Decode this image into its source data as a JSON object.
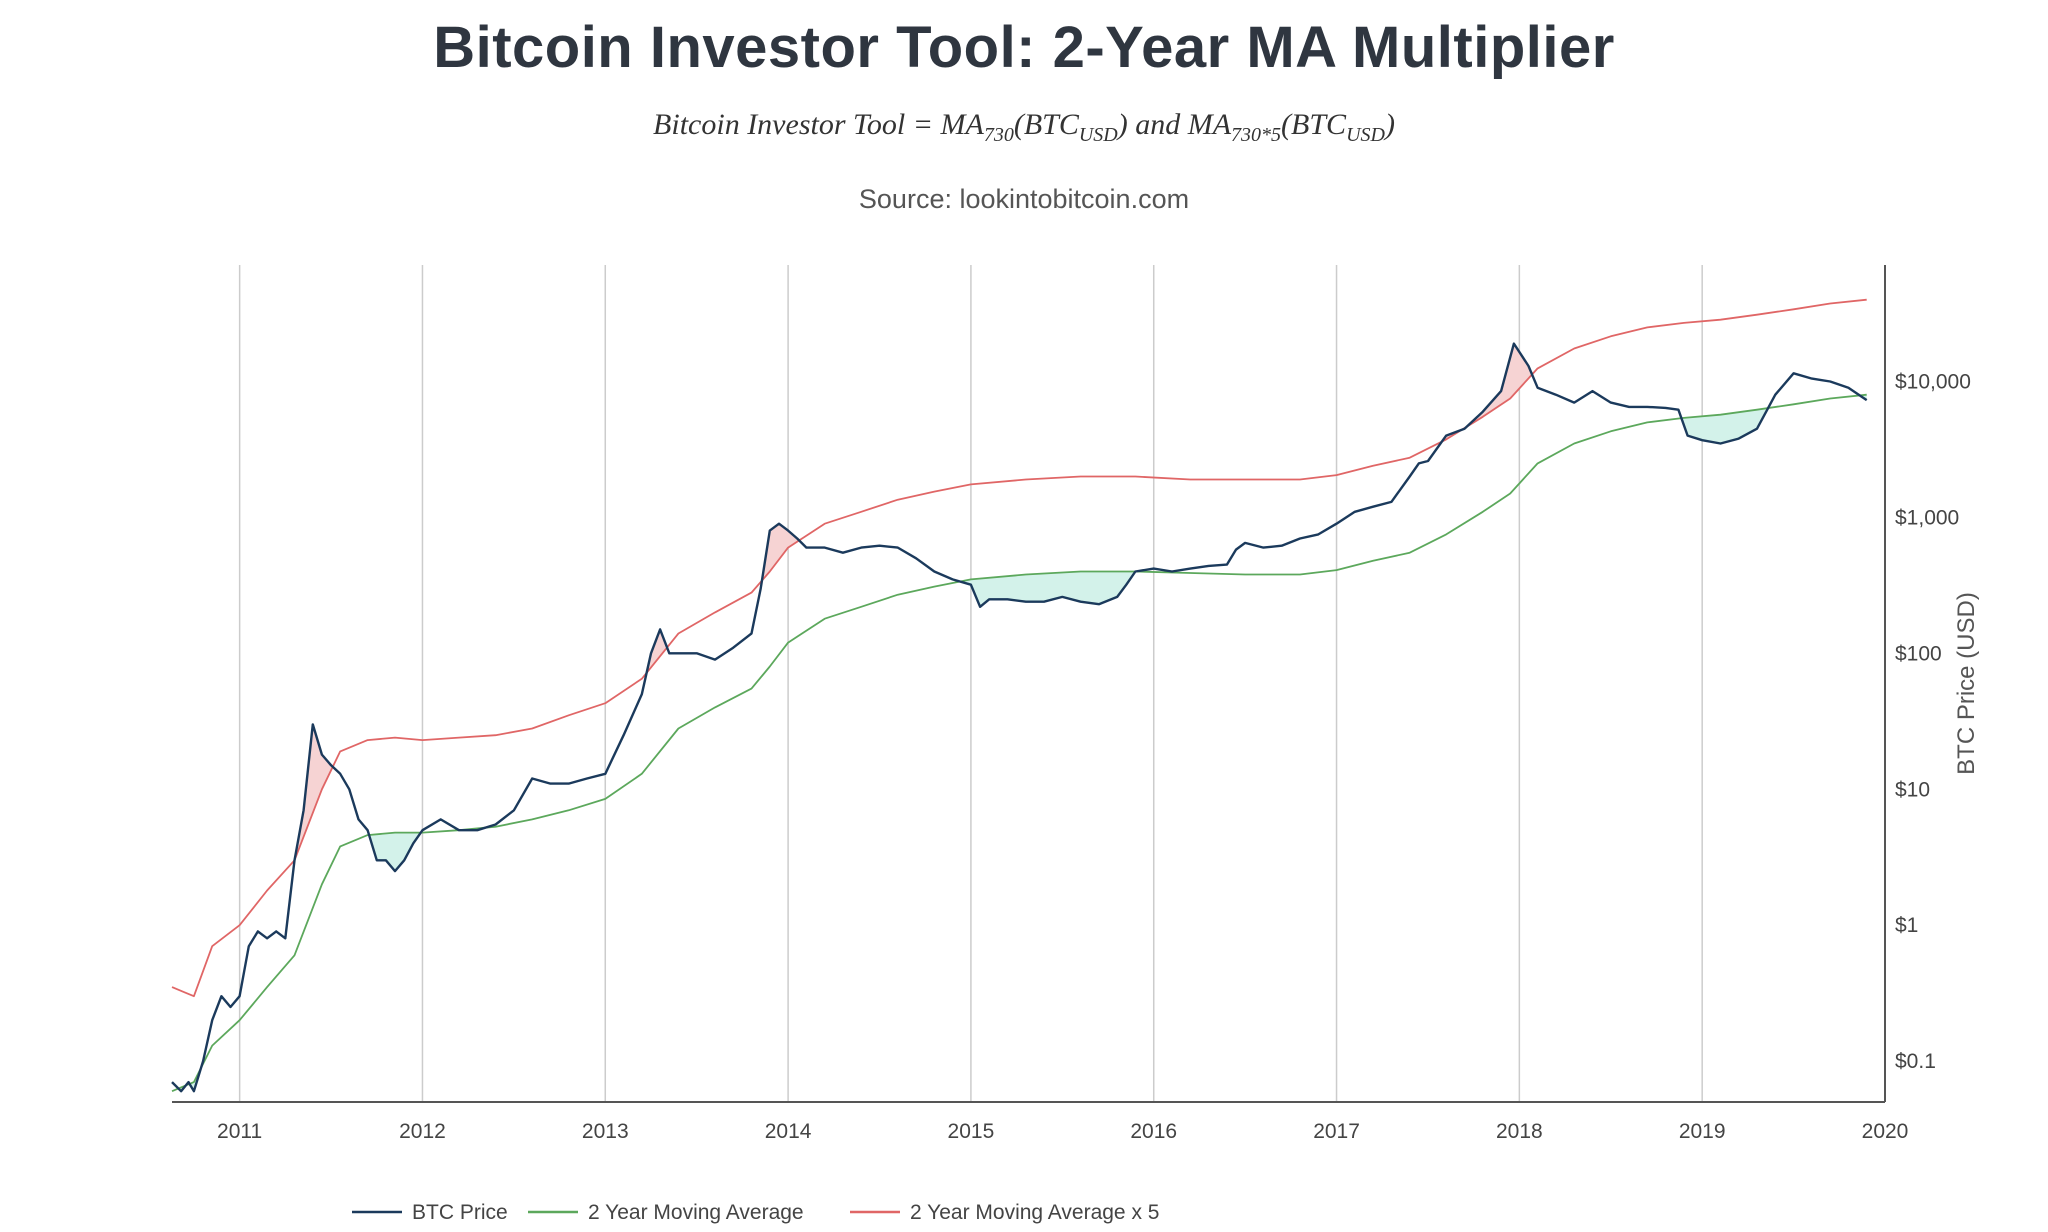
{
  "header": {
    "title": "Bitcoin Investor Tool: 2-Year MA Multiplier",
    "formula": {
      "lhs": "Bitcoin Investor Tool = MA",
      "sub1": "730",
      "mid1": "(BTC",
      "sub2": "USD",
      "mid2": ") and MA",
      "sub3": "730*5",
      "mid3": "(BTC",
      "sub4": "USD",
      "end": ")"
    },
    "source": "Source: lookintobitcoin.com"
  },
  "colors": {
    "btc": "#1b3a5c",
    "ma": "#5ca85c",
    "ma5": "#e06666",
    "fill_green": "#d3f2ea",
    "fill_red": "#f6d3d3",
    "grid": "#cccccc",
    "axis": "#555555"
  },
  "chart_data": {
    "type": "line",
    "title": "Bitcoin Investor Tool: 2-Year MA Multiplier",
    "subtitle": "Source: lookintobitcoin.com",
    "xlabel": "",
    "ylabel": "BTC Price (USD)",
    "y_scale": "log",
    "xlim": [
      2010.63,
      2020.0
    ],
    "ylim": [
      0.05,
      72000
    ],
    "x_ticks": [
      2011,
      2012,
      2013,
      2014,
      2015,
      2016,
      2017,
      2018,
      2019,
      2020
    ],
    "x_tick_labels": [
      "2011",
      "2012",
      "2013",
      "2014",
      "2015",
      "2016",
      "2017",
      "2018",
      "2019",
      "2020"
    ],
    "y_ticks": [
      0.1,
      1,
      10,
      100,
      1000,
      10000
    ],
    "y_tick_labels": [
      "$0.1",
      "$1",
      "$10",
      "$100",
      "$1,000",
      "$10,000"
    ],
    "grid": "vertical",
    "legend_position": "bottom",
    "series": [
      {
        "name": "BTC Price",
        "x": [
          2010.63,
          2010.68,
          2010.72,
          2010.75,
          2010.8,
          2010.85,
          2010.9,
          2010.95,
          2011.0,
          2011.05,
          2011.1,
          2011.15,
          2011.2,
          2011.25,
          2011.3,
          2011.35,
          2011.4,
          2011.45,
          2011.5,
          2011.55,
          2011.6,
          2011.65,
          2011.7,
          2011.75,
          2011.8,
          2011.85,
          2011.9,
          2011.95,
          2012.0,
          2012.1,
          2012.2,
          2012.3,
          2012.4,
          2012.5,
          2012.6,
          2012.7,
          2012.8,
          2012.9,
          2013.0,
          2013.1,
          2013.2,
          2013.25,
          2013.3,
          2013.35,
          2013.4,
          2013.5,
          2013.6,
          2013.7,
          2013.8,
          2013.85,
          2013.9,
          2013.95,
          2014.0,
          2014.05,
          2014.1,
          2014.2,
          2014.3,
          2014.4,
          2014.5,
          2014.6,
          2014.7,
          2014.8,
          2014.9,
          2015.0,
          2015.05,
          2015.1,
          2015.2,
          2015.3,
          2015.4,
          2015.5,
          2015.6,
          2015.7,
          2015.8,
          2015.85,
          2015.9,
          2016.0,
          2016.1,
          2016.2,
          2016.3,
          2016.4,
          2016.45,
          2016.5,
          2016.6,
          2016.7,
          2016.8,
          2016.9,
          2017.0,
          2017.1,
          2017.2,
          2017.3,
          2017.4,
          2017.45,
          2017.5,
          2017.6,
          2017.7,
          2017.8,
          2017.9,
          2017.97,
          2018.05,
          2018.1,
          2018.2,
          2018.3,
          2018.4,
          2018.5,
          2018.6,
          2018.7,
          2018.8,
          2018.87,
          2018.92,
          2019.0,
          2019.1,
          2019.2,
          2019.3,
          2019.4,
          2019.5,
          2019.6,
          2019.7,
          2019.8,
          2019.9
        ],
        "y": [
          0.07,
          0.06,
          0.07,
          0.06,
          0.1,
          0.2,
          0.3,
          0.25,
          0.3,
          0.7,
          0.9,
          0.8,
          0.9,
          0.8,
          3,
          7,
          30,
          18,
          15,
          13,
          10,
          6,
          5,
          3,
          3,
          2.5,
          3,
          4,
          5,
          6,
          5,
          5,
          5.5,
          7,
          12,
          11,
          11,
          12,
          13,
          25,
          50,
          100,
          150,
          100,
          100,
          100,
          90,
          110,
          140,
          300,
          800,
          900,
          800,
          700,
          600,
          600,
          550,
          600,
          620,
          600,
          500,
          400,
          350,
          320,
          220,
          250,
          250,
          240,
          240,
          260,
          240,
          230,
          260,
          320,
          400,
          420,
          400,
          420,
          440,
          450,
          580,
          650,
          600,
          620,
          700,
          750,
          900,
          1100,
          1200,
          1300,
          2000,
          2500,
          2600,
          4000,
          4500,
          6000,
          8500,
          19000,
          13000,
          9000,
          8000,
          7000,
          8500,
          7000,
          6500,
          6500,
          6400,
          6200,
          4000,
          3700,
          3500,
          3800,
          4500,
          8000,
          11500,
          10500,
          10000,
          9000,
          7300
        ]
      },
      {
        "name": "2 Year Moving Average",
        "x": [
          2010.63,
          2010.75,
          2010.85,
          2011.0,
          2011.15,
          2011.3,
          2011.45,
          2011.55,
          2011.7,
          2011.85,
          2012.0,
          2012.2,
          2012.4,
          2012.6,
          2012.8,
          2013.0,
          2013.2,
          2013.4,
          2013.6,
          2013.8,
          2013.9,
          2014.0,
          2014.2,
          2014.4,
          2014.6,
          2014.8,
          2015.0,
          2015.3,
          2015.6,
          2015.9,
          2016.2,
          2016.5,
          2016.8,
          2017.0,
          2017.2,
          2017.4,
          2017.6,
          2017.8,
          2017.95,
          2018.1,
          2018.3,
          2018.5,
          2018.7,
          2018.9,
          2019.1,
          2019.3,
          2019.5,
          2019.7,
          2019.9
        ],
        "y": [
          0.06,
          0.07,
          0.13,
          0.2,
          0.35,
          0.6,
          2,
          3.8,
          4.6,
          4.8,
          4.8,
          5,
          5.3,
          6,
          7,
          8.5,
          13,
          28,
          40,
          55,
          80,
          120,
          180,
          220,
          270,
          310,
          350,
          380,
          400,
          400,
          390,
          380,
          380,
          410,
          480,
          550,
          750,
          1100,
          1500,
          2500,
          3500,
          4300,
          5000,
          5400,
          5700,
          6200,
          6800,
          7500,
          8000
        ]
      },
      {
        "name": "2 Year Moving Average x 5",
        "x": [
          2010.63,
          2010.7,
          2010.75,
          2010.85,
          2011.0,
          2011.15,
          2011.3,
          2011.45,
          2011.55,
          2011.7,
          2011.85,
          2012.0,
          2012.2,
          2012.4,
          2012.6,
          2012.8,
          2013.0,
          2013.2,
          2013.4,
          2013.6,
          2013.8,
          2013.9,
          2014.0,
          2014.2,
          2014.4,
          2014.6,
          2014.8,
          2015.0,
          2015.3,
          2015.6,
          2015.9,
          2016.2,
          2016.5,
          2016.8,
          2017.0,
          2017.2,
          2017.4,
          2017.6,
          2017.8,
          2017.95,
          2018.1,
          2018.3,
          2018.5,
          2018.7,
          2018.9,
          2019.1,
          2019.3,
          2019.5,
          2019.7,
          2019.9
        ],
        "y": [
          0.35,
          0.32,
          0.3,
          0.7,
          1,
          1.8,
          3,
          10,
          19,
          23,
          24,
          23,
          24,
          25,
          28,
          35,
          43,
          65,
          140,
          200,
          280,
          400,
          600,
          900,
          1100,
          1350,
          1550,
          1750,
          1900,
          2000,
          2000,
          1900,
          1900,
          1900,
          2050,
          2400,
          2750,
          3750,
          5500,
          7500,
          12500,
          17500,
          21500,
          25000,
          27000,
          28500,
          31000,
          34000,
          37500,
          40000
        ]
      }
    ]
  }
}
